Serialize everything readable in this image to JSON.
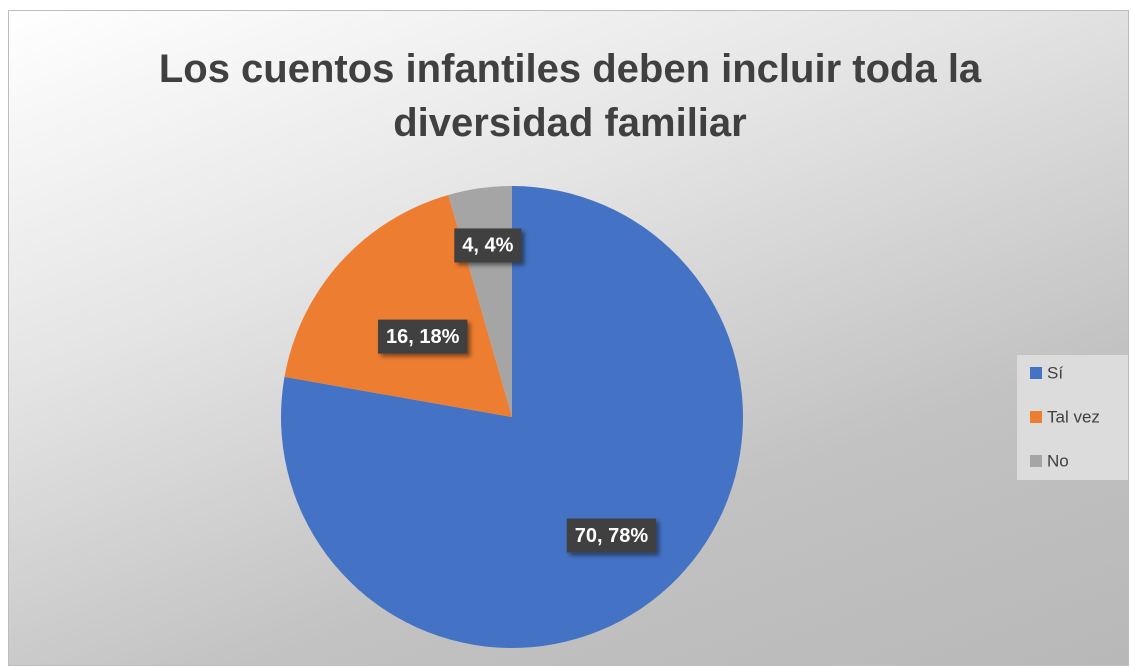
{
  "chart_data": {
    "type": "pie",
    "title": "Los cuentos infantiles deben incluir toda la diversidad familiar",
    "categories": [
      "Sí",
      "Tal vez",
      "No"
    ],
    "values": [
      70,
      16,
      4
    ],
    "value_labels": [
      "70, 78%",
      "16, 18%",
      "4, 4%"
    ],
    "colors": [
      "#4472c4",
      "#ed7d31",
      "#a5a5a5"
    ],
    "legend": "right"
  }
}
